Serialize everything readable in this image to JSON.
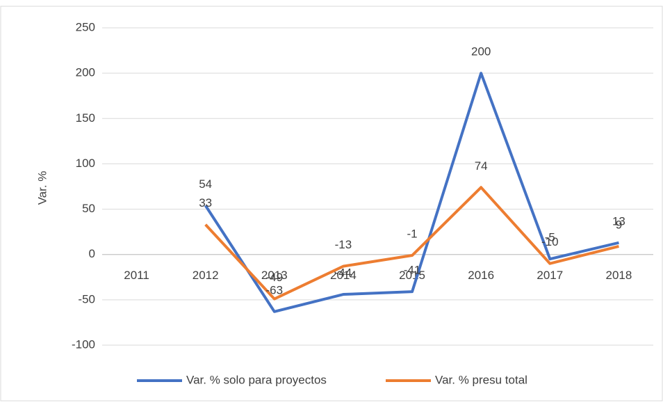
{
  "chart_data": {
    "type": "line",
    "y_label": "Var. %",
    "categories": [
      "2011",
      "2012",
      "2013",
      "2014",
      "2015",
      "2016",
      "2017",
      "2018"
    ],
    "series": [
      {
        "name": "Var. % solo para proyectos",
        "color": "#4472c4",
        "values": [
          null,
          54,
          -63,
          -44,
          -41,
          200,
          -5,
          13
        ]
      },
      {
        "name": "Var. % presu total",
        "color": "#ed7d31",
        "values": [
          null,
          33,
          -49,
          -13,
          -1,
          74,
          -10,
          9
        ]
      }
    ],
    "ylim": [
      -100,
      250
    ],
    "yticks": [
      -100,
      -50,
      0,
      50,
      100,
      150,
      200,
      250
    ],
    "grid": true,
    "legend": "bottom"
  }
}
